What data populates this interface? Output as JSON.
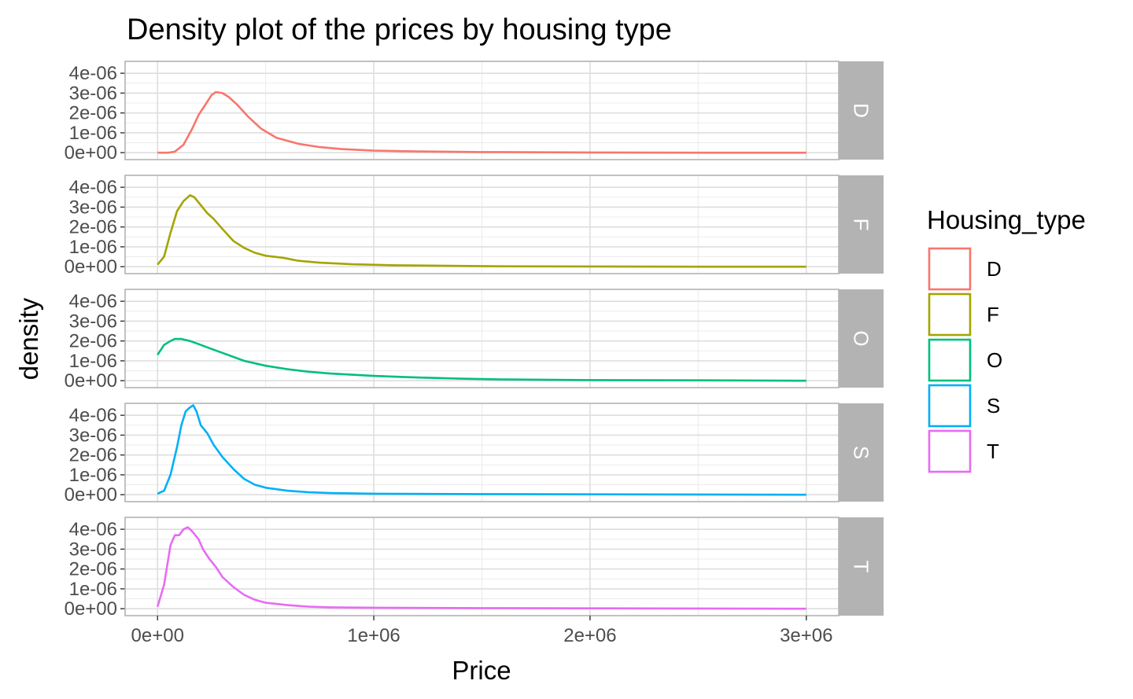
{
  "chart_data": {
    "type": "line",
    "title": "Density plot of the prices by housing type",
    "xlabel": "Price",
    "ylabel": "density",
    "xlim": [
      -150000,
      3150000
    ],
    "ylim": [
      -3.5e-07,
      4.6e-06
    ],
    "x_ticks": [
      0,
      1000000,
      2000000,
      3000000
    ],
    "x_tick_labels": [
      "0e+00",
      "1e+06",
      "2e+06",
      "3e+06"
    ],
    "y_ticks": [
      0,
      1e-06,
      2e-06,
      3e-06,
      4e-06
    ],
    "y_tick_labels": [
      "0e+00",
      "1e-06",
      "2e-06",
      "3e-06",
      "4e-06"
    ],
    "grid": true,
    "facet": "rows",
    "legend": {
      "title": "Housing_type",
      "position": "right",
      "entries": [
        "D",
        "F",
        "O",
        "S",
        "T"
      ]
    },
    "series": [
      {
        "name": "D",
        "color": "#F8766D",
        "x": [
          0,
          50000,
          80000,
          120000,
          160000,
          190000,
          220000,
          250000,
          270000,
          300000,
          330000,
          370000,
          420000,
          480000,
          550000,
          650000,
          750000,
          850000,
          1000000,
          1200000,
          1500000,
          2000000,
          2500000,
          3000000
        ],
        "y": [
          0,
          0,
          5e-08,
          4e-07,
          1.2e-06,
          1.9e-06,
          2.4e-06,
          2.9e-06,
          3.05e-06,
          3e-06,
          2.8e-06,
          2.4e-06,
          1.8e-06,
          1.2e-06,
          7.5e-07,
          4.5e-07,
          2.8e-07,
          1.8e-07,
          1e-07,
          6e-08,
          3e-08,
          1e-08,
          0,
          0
        ]
      },
      {
        "name": "F",
        "color": "#A3A500",
        "x": [
          0,
          30000,
          60000,
          90000,
          120000,
          150000,
          170000,
          200000,
          230000,
          260000,
          300000,
          350000,
          400000,
          450000,
          500000,
          580000,
          650000,
          750000,
          900000,
          1100000,
          1400000,
          1600000,
          2000000,
          2500000,
          3000000
        ],
        "y": [
          1e-07,
          5e-07,
          1.7e-06,
          2.8e-06,
          3.3e-06,
          3.6e-06,
          3.5e-06,
          3.1e-06,
          2.7e-06,
          2.4e-06,
          1.9e-06,
          1.3e-06,
          9.5e-07,
          7e-07,
          5.5e-07,
          4.5e-07,
          3e-07,
          2e-07,
          1.2e-07,
          7e-08,
          4e-08,
          2e-08,
          1e-08,
          0,
          0
        ]
      },
      {
        "name": "O",
        "color": "#00BF7D",
        "x": [
          0,
          30000,
          60000,
          80000,
          110000,
          150000,
          200000,
          250000,
          300000,
          400000,
          500000,
          600000,
          700000,
          800000,
          1000000,
          1200000,
          1400000,
          1600000,
          2000000,
          2500000,
          2750000,
          3000000
        ],
        "y": [
          1.3e-06,
          1.8e-06,
          2e-06,
          2.1e-06,
          2.1e-06,
          2e-06,
          1.8e-06,
          1.6e-06,
          1.4e-06,
          1e-06,
          7.5e-07,
          5.8e-07,
          4.5e-07,
          3.6e-07,
          2.4e-07,
          1.6e-07,
          1e-07,
          6e-08,
          3e-08,
          2e-08,
          1e-08,
          0
        ]
      },
      {
        "name": "S",
        "color": "#00B0F6",
        "x": [
          0,
          30000,
          60000,
          90000,
          110000,
          130000,
          150000,
          165000,
          180000,
          200000,
          230000,
          260000,
          300000,
          350000,
          400000,
          450000,
          500000,
          600000,
          700000,
          800000,
          1000000,
          1500000,
          2000000,
          2500000,
          3000000
        ],
        "y": [
          5e-08,
          2e-07,
          1e-06,
          2.4e-06,
          3.5e-06,
          4.2e-06,
          4.4e-06,
          4.5e-06,
          4.2e-06,
          3.5e-06,
          3.1e-06,
          2.5e-06,
          1.9e-06,
          1.3e-06,
          8e-07,
          5e-07,
          3.5e-07,
          2e-07,
          1.2e-07,
          8e-08,
          5e-08,
          3e-08,
          2e-08,
          1e-08,
          0
        ]
      },
      {
        "name": "T",
        "color": "#E76BF3",
        "x": [
          0,
          30000,
          60000,
          80000,
          100000,
          120000,
          140000,
          160000,
          190000,
          210000,
          240000,
          270000,
          300000,
          350000,
          400000,
          450000,
          500000,
          600000,
          700000,
          800000,
          1000000,
          1500000,
          2000000,
          2500000,
          3000000
        ],
        "y": [
          1e-07,
          1.2e-06,
          3.2e-06,
          3.7e-06,
          3.7e-06,
          4e-06,
          4.1e-06,
          3.9e-06,
          3.5e-06,
          3e-06,
          2.5e-06,
          2.1e-06,
          1.6e-06,
          1.1e-06,
          7e-07,
          4.5e-07,
          3e-07,
          1.8e-07,
          1e-07,
          7e-08,
          5e-08,
          3e-08,
          2e-08,
          1e-08,
          0
        ]
      }
    ]
  }
}
